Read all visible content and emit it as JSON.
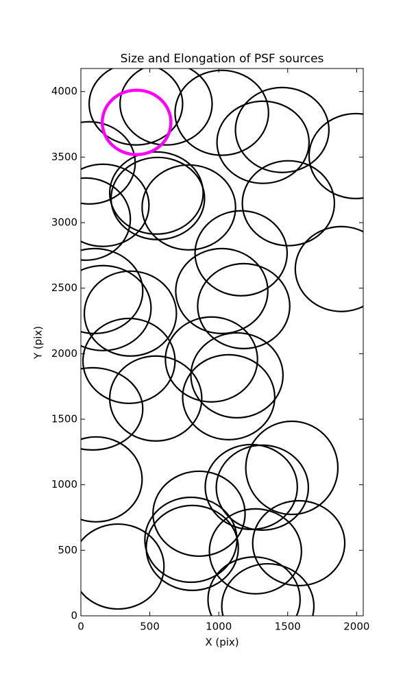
{
  "chart_data": {
    "type": "ellipse",
    "title": "Size and Elongation of PSF sources",
    "xlabel": "X (pix)",
    "ylabel": "Y (pix)",
    "xlim": [
      0,
      2048
    ],
    "ylim": [
      0,
      4176
    ],
    "xticks": [
      0,
      500,
      1000,
      1500,
      2000
    ],
    "yticks": [
      0,
      500,
      1000,
      1500,
      2000,
      2500,
      3000,
      3500,
      4000
    ],
    "series": [
      {
        "color": "#000000",
        "x": [
          399,
          618,
          1022,
          1321,
          1460,
          1994,
          60,
          160,
          548,
          558,
          783,
          1505,
          35,
          1162,
          1889,
          100,
          1022,
          1181,
          160,
          359,
          349,
          947,
          1132,
          85,
          543,
          1072,
          110,
          857,
          1236,
          1316,
          1530,
          798,
          808,
          1266,
          1580,
          269,
          1256,
          1356
        ],
        "y": [
          3906,
          3906,
          3838,
          3613,
          3707,
          3508,
          3456,
          3132,
          3226,
          3184,
          3116,
          3148,
          3027,
          2766,
          2646,
          2478,
          2478,
          2363,
          2348,
          2306,
          1945,
          1956,
          1835,
          1579,
          1658,
          1668,
          1041,
          779,
          983,
          978,
          1129,
          580,
          518,
          492,
          554,
          376,
          125,
          73
        ],
        "width": [
          678,
          668,
          678,
          668,
          678,
          678,
          668,
          668,
          678,
          678,
          678,
          668,
          648,
          668,
          668,
          698,
          668,
          668,
          698,
          668,
          668,
          668,
          668,
          728,
          668,
          668,
          668,
          668,
          668,
          668,
          668,
          668,
          668,
          668,
          668,
          668,
          668,
          668
        ],
        "height": [
          627,
          627,
          648,
          627,
          648,
          648,
          627,
          627,
          627,
          627,
          648,
          648,
          627,
          648,
          648,
          648,
          648,
          648,
          648,
          648,
          648,
          648,
          648,
          627,
          648,
          648,
          648,
          648,
          648,
          648,
          711,
          648,
          648,
          648,
          648,
          648,
          648,
          648
        ]
      },
      {
        "color": "#ff00ff",
        "x": [
          404
        ],
        "y": [
          3765
        ],
        "width": [
          498
        ],
        "height": [
          492
        ]
      }
    ]
  }
}
